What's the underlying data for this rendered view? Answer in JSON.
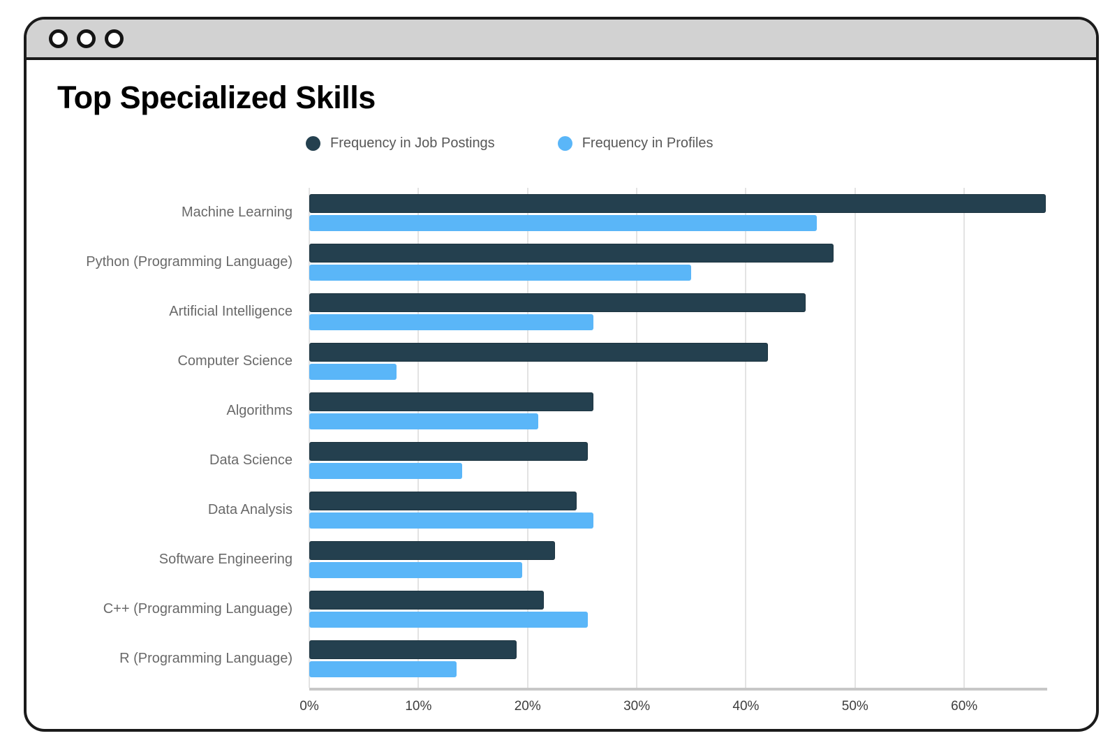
{
  "window": {
    "controls": [
      "window-dot-1",
      "window-dot-2",
      "window-dot-3"
    ]
  },
  "title": "Top Specialized Skills",
  "colors": {
    "job_postings": "#24404f",
    "profiles": "#5ab6f8",
    "grid": "#e3e3e3",
    "axis_line": "#c7c7c7",
    "category_label": "#696969",
    "tick_label": "#3d3d3d",
    "legend_text": "#575757",
    "titlebar_bg": "#d2d2d2",
    "window_border": "#1b1b1b"
  },
  "chart_data": {
    "type": "bar",
    "orientation": "horizontal",
    "title": "Top Specialized Skills",
    "categories": [
      "Machine Learning",
      "Python (Programming Language)",
      "Artificial Intelligence",
      "Computer Science",
      "Algorithms",
      "Data Science",
      "Data Analysis",
      "Software Engineering",
      "C++ (Programming Language)",
      "R (Programming Language)"
    ],
    "series": [
      {
        "name": "Frequency in Job Postings",
        "color": "#24404f",
        "values": [
          67.5,
          48,
          45.5,
          42,
          26,
          25.5,
          24.5,
          22.5,
          21.5,
          19
        ]
      },
      {
        "name": "Frequency in Profiles",
        "color": "#5ab6f8",
        "values": [
          46.5,
          35,
          26,
          8,
          21,
          14,
          26,
          19.5,
          25.5,
          13.5
        ]
      }
    ],
    "xlabel": "",
    "ylabel": "",
    "xlim": [
      0,
      67.6
    ],
    "x_tick_values": [
      0,
      10,
      20,
      30,
      40,
      50,
      60
    ],
    "x_tick_labels": [
      "0%",
      "10%",
      "20%",
      "30%",
      "40%",
      "50%",
      "60%"
    ],
    "grid": "vertical",
    "legend_position": "top-center"
  }
}
